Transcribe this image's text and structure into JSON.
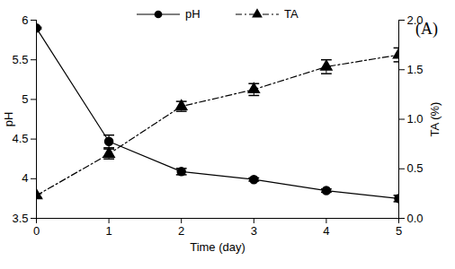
{
  "chart_data": {
    "type": "line",
    "x": [
      0,
      1,
      2,
      3,
      4,
      5
    ],
    "xlabel": "Time (day)",
    "ylabel": "pH",
    "y2label": "TA (%)",
    "annotations": [
      "(A)"
    ],
    "xlim": [
      0,
      5
    ],
    "xticks": [
      0,
      1,
      2,
      3,
      4,
      5
    ],
    "ylim": [
      3.5,
      6
    ],
    "yticks": [
      3.5,
      4,
      4.5,
      5,
      5.5,
      6
    ],
    "y2lim": [
      0,
      2
    ],
    "y2ticks": [
      {
        "value": 0,
        "label": "0.0"
      },
      {
        "value": 0.5,
        "label": "0.5"
      },
      {
        "value": 1,
        "label": "1.0"
      },
      {
        "value": 1.5,
        "label": "1.5"
      },
      {
        "value": 2,
        "label": "2.0"
      }
    ],
    "legend": "top",
    "series": [
      {
        "name": "pH",
        "color": "#000000",
        "marker": "circle",
        "line_style": "solid",
        "values": [
          5.9,
          4.47,
          4.09,
          3.99,
          3.85,
          3.75
        ],
        "errors": [
          0.01,
          0.08,
          0.04,
          0.02,
          0.02,
          0.04
        ]
      },
      {
        "name": "TA",
        "color": "#000000",
        "marker": "triangle",
        "line_style": "dashdot",
        "axis": "y2",
        "values": [
          0.23,
          0.65,
          1.13,
          1.3,
          1.53,
          1.65
        ],
        "errors": [
          0.02,
          0.05,
          0.05,
          0.06,
          0.07,
          0.07
        ]
      }
    ]
  }
}
